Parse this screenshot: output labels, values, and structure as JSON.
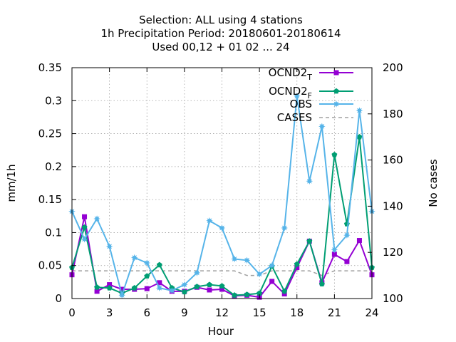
{
  "title_lines": [
    "Selection: ALL using     4 stations",
    "1h Precipitation   Period: 20180601-20180614",
    "Used  00,12  + 01 02 ... 24"
  ],
  "chart_data": {
    "type": "line",
    "xlabel": "Hour",
    "ylabel": "mm/1h",
    "y2label": "No cases",
    "xlim": [
      0,
      24
    ],
    "ylim": [
      0,
      0.35
    ],
    "y2lim": [
      100,
      200
    ],
    "grid": true,
    "legend_position": "top-right",
    "x_ticks": [
      0,
      3,
      6,
      9,
      12,
      15,
      18,
      21,
      24
    ],
    "x_tick_labels": [
      "0",
      "3",
      "6",
      "9",
      "12",
      "15",
      "18",
      "21",
      "24"
    ],
    "y_ticks": [
      0,
      0.05,
      0.1,
      0.15,
      0.2,
      0.25,
      0.3,
      0.35
    ],
    "y_tick_labels": [
      "0",
      "0.05",
      "0.1",
      "0.15",
      "0.2",
      "0.25",
      "0.3",
      "0.35"
    ],
    "y2_ticks": [
      100,
      120,
      140,
      160,
      180,
      200
    ],
    "y2_tick_labels": [
      "100",
      "120",
      "140",
      "160",
      "180",
      "200"
    ],
    "x": [
      0,
      1,
      2,
      3,
      4,
      5,
      6,
      7,
      8,
      9,
      10,
      11,
      12,
      13,
      14,
      15,
      16,
      17,
      18,
      19,
      20,
      21,
      22,
      23,
      24
    ],
    "series": [
      {
        "name": "OCND2",
        "name_sub": "T",
        "color": "#9400d3",
        "marker": "square",
        "axis": "y",
        "values": [
          0.036,
          0.124,
          0.011,
          0.021,
          0.014,
          0.014,
          0.015,
          0.024,
          0.011,
          0.011,
          0.017,
          0.013,
          0.014,
          0.004,
          0.005,
          0.002,
          0.026,
          0.007,
          0.047,
          0.087,
          0.024,
          0.067,
          0.056,
          0.088,
          0.036
        ]
      },
      {
        "name": "OCND2",
        "name_sub": "F",
        "color": "#009e73",
        "marker": "pentagon",
        "axis": "y",
        "values": [
          0.047,
          0.108,
          0.017,
          0.016,
          0.008,
          0.016,
          0.034,
          0.051,
          0.016,
          0.01,
          0.018,
          0.021,
          0.019,
          0.005,
          0.006,
          0.008,
          0.049,
          0.011,
          0.052,
          0.087,
          0.022,
          0.218,
          0.113,
          0.245,
          0.047
        ]
      },
      {
        "name": "OBS",
        "name_sub": "",
        "color": "#56b4e9",
        "marker": "star",
        "axis": "y",
        "values": [
          0.132,
          0.09,
          0.121,
          0.079,
          0.005,
          0.062,
          0.054,
          0.016,
          0.012,
          0.021,
          0.039,
          0.118,
          0.107,
          0.06,
          0.058,
          0.037,
          0.05,
          0.107,
          0.307,
          0.178,
          0.261,
          0.074,
          0.096,
          0.285,
          0.132
        ]
      },
      {
        "name": "CASES",
        "name_sub": "",
        "color": "#a0a0a0",
        "marker": "none",
        "dashed": true,
        "axis": "y2",
        "values": [
          112,
          112,
          112,
          112,
          112,
          112,
          112,
          112,
          112,
          112,
          112,
          112,
          112,
          112,
          110,
          110,
          112,
          112,
          112,
          112,
          110,
          112,
          112,
          112,
          112
        ]
      }
    ]
  }
}
